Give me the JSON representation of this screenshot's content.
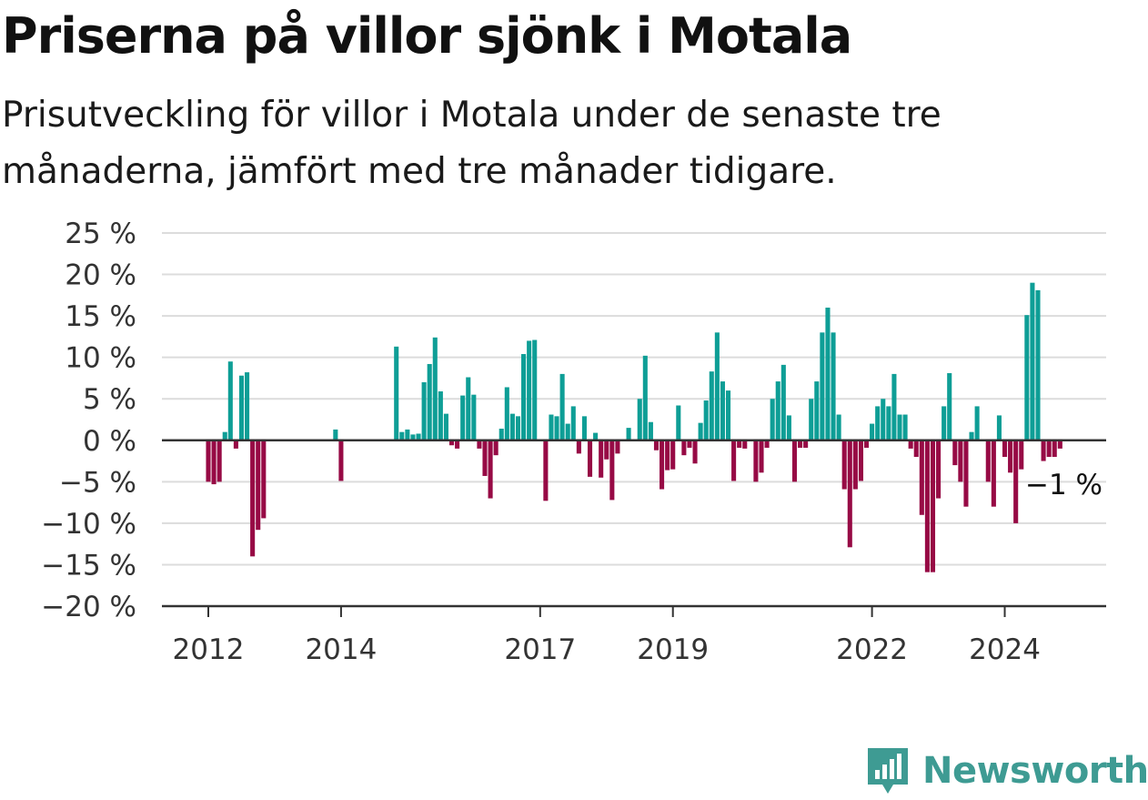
{
  "header": {
    "title": "Priserna på villor sjönk i Motala",
    "subtitle": "Prisutveckling för villor i Motala under de senaste tre månaderna, jämfört med tre månader tidigare."
  },
  "brand": {
    "name": "Newsworthy",
    "color": "#3e9b93",
    "icon": "bar-chart-logo-icon"
  },
  "colors": {
    "positive": "#0e9e96",
    "negative": "#970a45",
    "grid": "#dcdcdc",
    "axis": "#333333"
  },
  "chart_data": {
    "type": "bar",
    "title": "",
    "xlabel": "",
    "ylabel": "",
    "ylim": [
      -20,
      25
    ],
    "yticks": [
      25,
      20,
      15,
      10,
      5,
      0,
      -5,
      -10,
      -15,
      -20
    ],
    "ytick_labels": [
      "25 %",
      "20 %",
      "15 %",
      "10 %",
      "5 %",
      "0 %",
      "−5 %",
      "−10 %",
      "−15 %",
      "−20 %"
    ],
    "x_start": "2012-01",
    "xticks": [
      {
        "date": "2012-01",
        "label": "2012"
      },
      {
        "date": "2014-01",
        "label": "2014"
      },
      {
        "date": "2017-01",
        "label": "2017"
      },
      {
        "date": "2019-01",
        "label": "2019"
      },
      {
        "date": "2022-01",
        "label": "2022"
      },
      {
        "date": "2024-01",
        "label": "2024"
      }
    ],
    "grid": true,
    "legend": "none",
    "end_label": "−1 %",
    "series": [
      {
        "values": [
          -5,
          -5.3,
          -5,
          1,
          9.5,
          -1,
          7.8,
          8.2,
          -14,
          -10.8,
          -9.4,
          null,
          null,
          null,
          null,
          null,
          null,
          null,
          null,
          null,
          null,
          null,
          null,
          1.3,
          -4.9,
          null,
          null,
          null,
          null,
          null,
          null,
          null,
          null,
          null,
          11.3,
          1,
          1.3,
          0.7,
          0.8,
          7,
          9.2,
          12.4,
          5.9,
          3.2,
          -0.6,
          -1,
          5.4,
          7.6,
          5.5,
          -1,
          -4.3,
          -7,
          -1.8,
          1.4,
          6.4,
          3.2,
          2.9,
          10.4,
          12,
          12.1,
          null,
          -7.3,
          3.1,
          2.9,
          8,
          2,
          4.1,
          -1.6,
          2.9,
          -4.4,
          0.9,
          -4.5,
          -2.3,
          -7.2,
          -1.6,
          null,
          1.5,
          null,
          5,
          10.2,
          2.2,
          -1.2,
          -5.9,
          -3.6,
          -3.5,
          4.2,
          -1.8,
          -0.9,
          -2.8,
          2.1,
          4.8,
          8.3,
          13,
          7.1,
          6,
          -4.9,
          -0.9,
          -1,
          null,
          -5,
          -3.9,
          -0.9,
          5,
          7.1,
          9.1,
          3,
          -5,
          -0.9,
          -0.9,
          5,
          7.1,
          13,
          16,
          13,
          3.1,
          -5.9,
          -12.9,
          -5.9,
          -4.9,
          -0.9,
          2,
          4.1,
          5,
          4.1,
          8,
          3.1,
          3.1,
          -1,
          -2,
          -9,
          -15.9,
          -15.9,
          -7,
          4.1,
          8.1,
          -3,
          -5,
          -8,
          1,
          4.1,
          null,
          -5,
          -8,
          3,
          -2,
          -3.9,
          -10,
          -3.5,
          15.1,
          19,
          18.1,
          -2.5,
          -2,
          -2,
          -1
        ]
      }
    ]
  }
}
